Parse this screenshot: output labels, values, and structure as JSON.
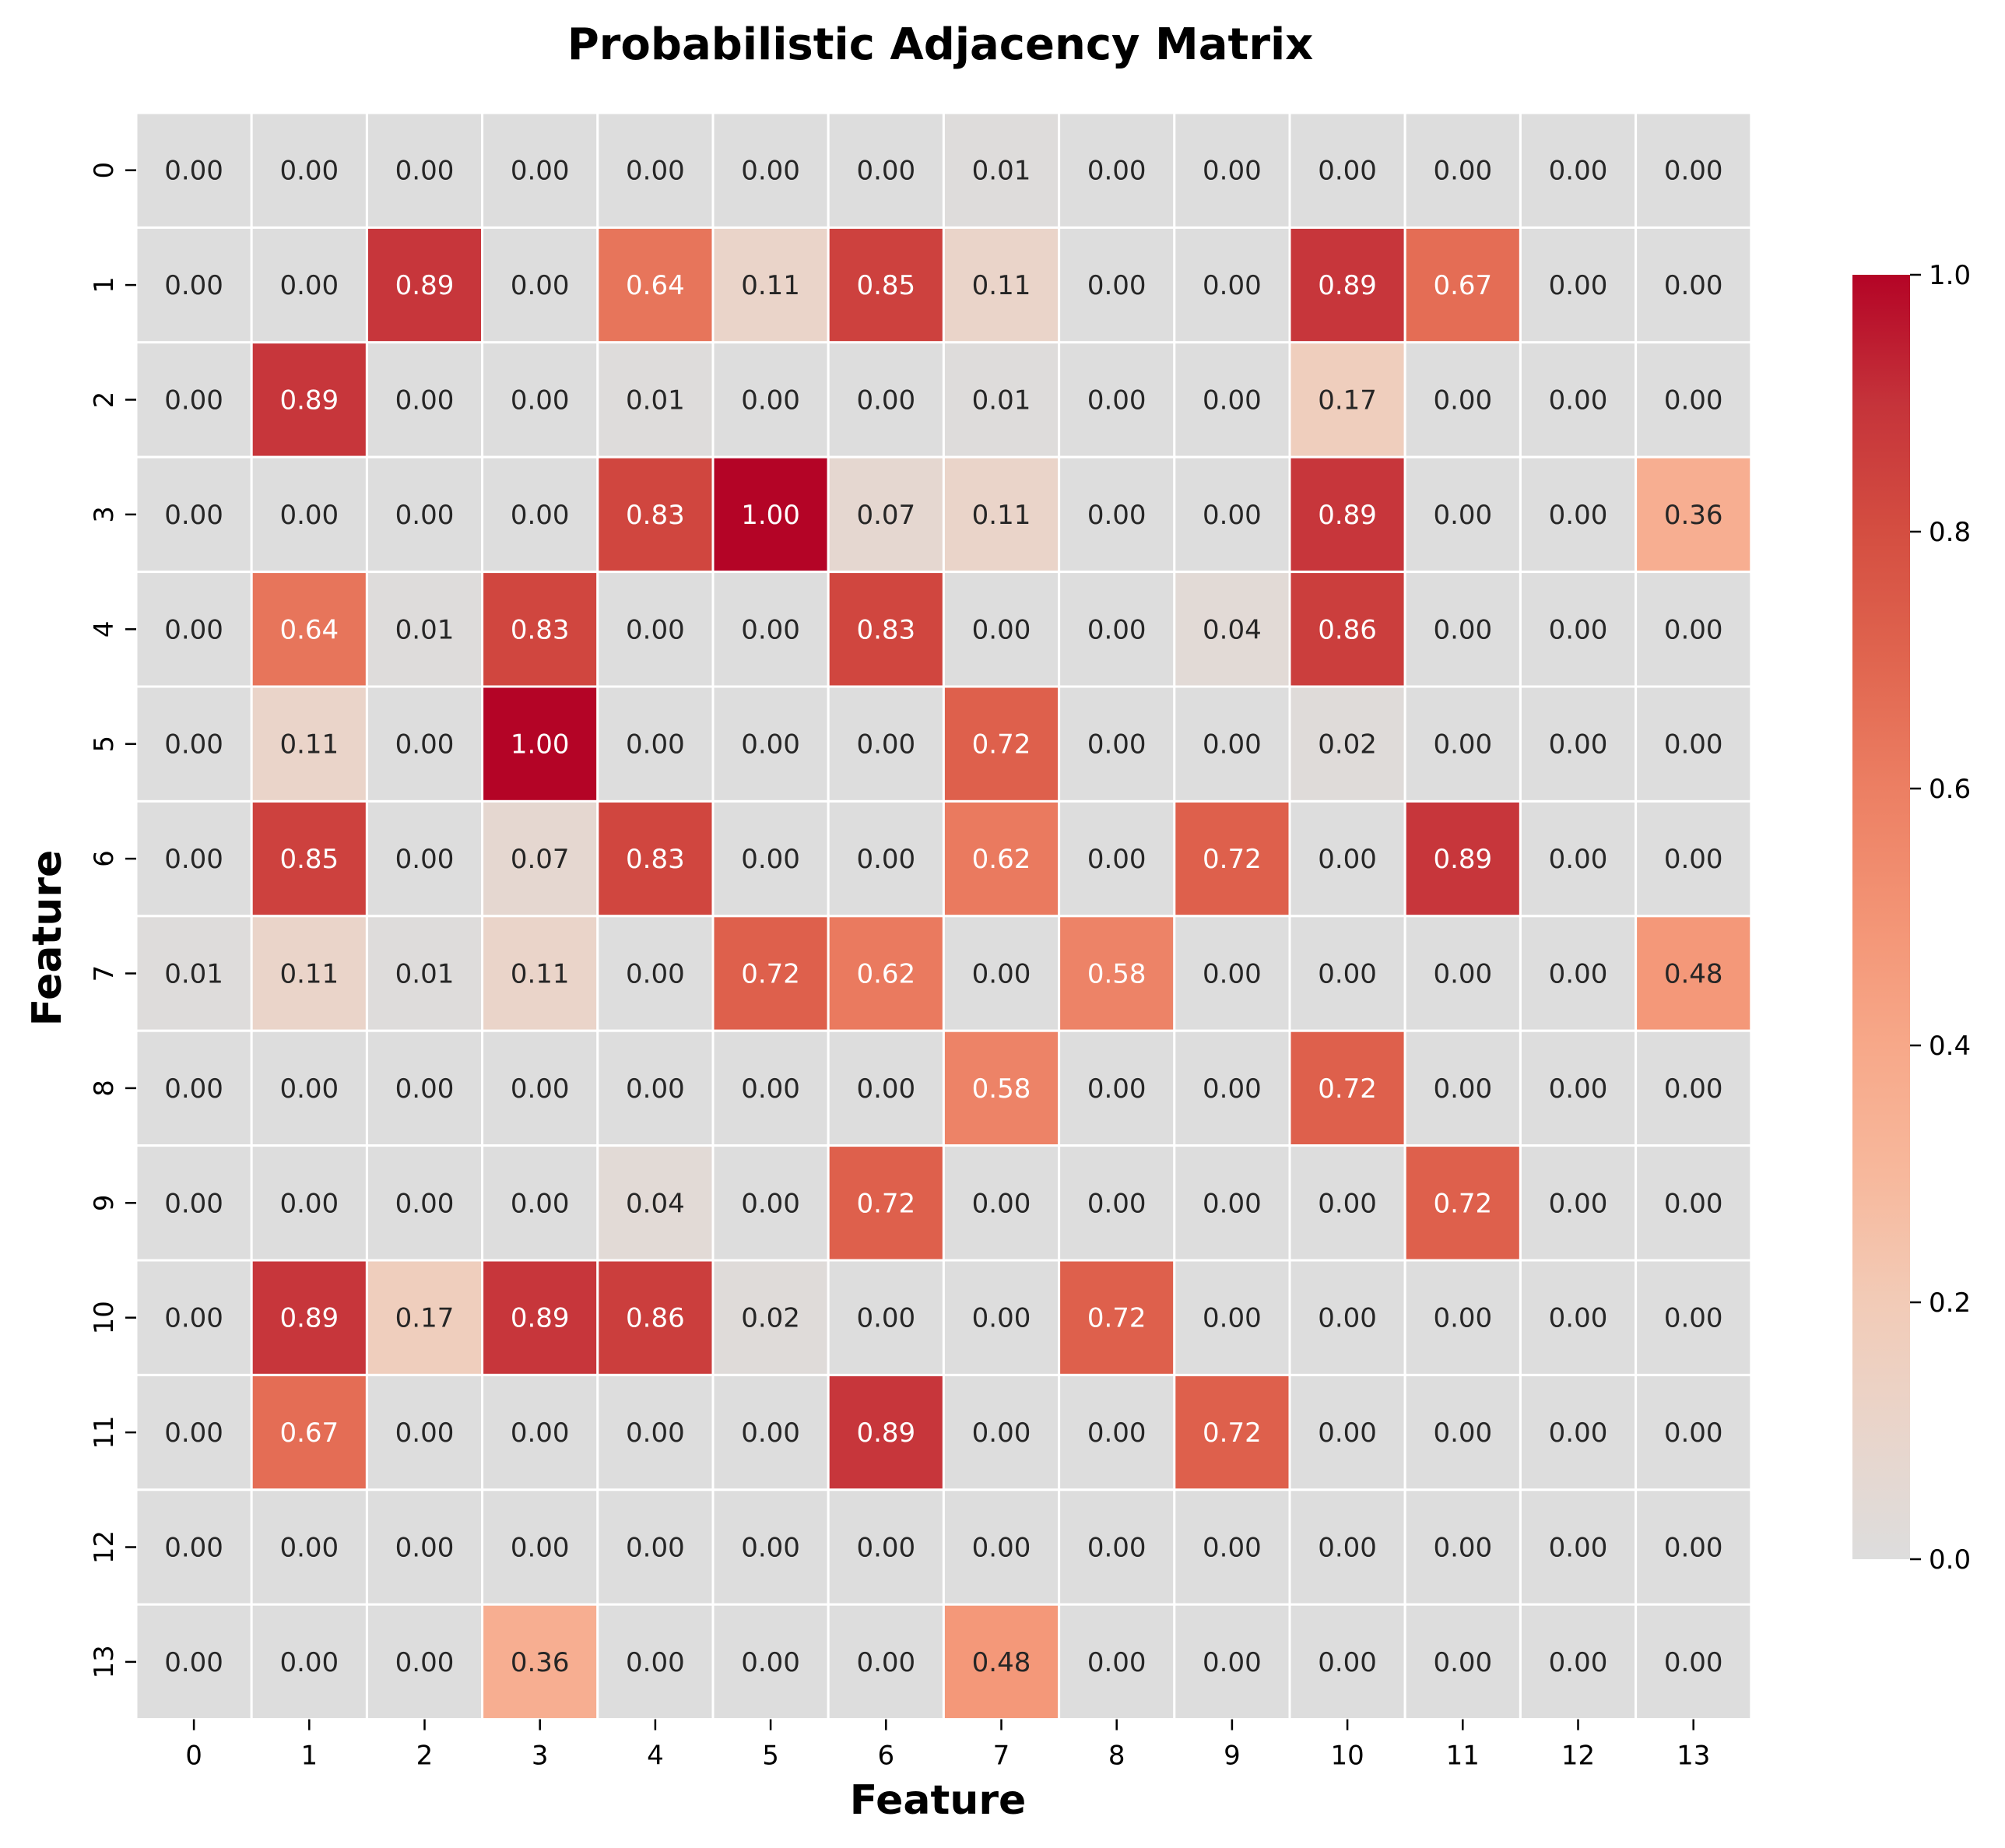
{
  "chart_data": {
    "type": "heatmap",
    "title": "Probabilistic Adjacency Matrix",
    "xlabel": "Feature",
    "ylabel": "Feature",
    "x_categories": [
      "0",
      "1",
      "2",
      "3",
      "4",
      "5",
      "6",
      "7",
      "8",
      "9",
      "10",
      "11",
      "12",
      "13"
    ],
    "y_categories": [
      "0",
      "1",
      "2",
      "3",
      "4",
      "5",
      "6",
      "7",
      "8",
      "9",
      "10",
      "11",
      "12",
      "13"
    ],
    "values": [
      [
        0.0,
        0.0,
        0.0,
        0.0,
        0.0,
        0.0,
        0.0,
        0.01,
        0.0,
        0.0,
        0.0,
        0.0,
        0.0,
        0.0
      ],
      [
        0.0,
        0.0,
        0.89,
        0.0,
        0.64,
        0.11,
        0.85,
        0.11,
        0.0,
        0.0,
        0.89,
        0.67,
        0.0,
        0.0
      ],
      [
        0.0,
        0.89,
        0.0,
        0.0,
        0.01,
        0.0,
        0.0,
        0.01,
        0.0,
        0.0,
        0.17,
        0.0,
        0.0,
        0.0
      ],
      [
        0.0,
        0.0,
        0.0,
        0.0,
        0.83,
        1.0,
        0.07,
        0.11,
        0.0,
        0.0,
        0.89,
        0.0,
        0.0,
        0.36
      ],
      [
        0.0,
        0.64,
        0.01,
        0.83,
        0.0,
        0.0,
        0.83,
        0.0,
        0.0,
        0.04,
        0.86,
        0.0,
        0.0,
        0.0
      ],
      [
        0.0,
        0.11,
        0.0,
        1.0,
        0.0,
        0.0,
        0.0,
        0.72,
        0.0,
        0.0,
        0.02,
        0.0,
        0.0,
        0.0
      ],
      [
        0.0,
        0.85,
        0.0,
        0.07,
        0.83,
        0.0,
        0.0,
        0.62,
        0.0,
        0.72,
        0.0,
        0.89,
        0.0,
        0.0
      ],
      [
        0.01,
        0.11,
        0.01,
        0.11,
        0.0,
        0.72,
        0.62,
        0.0,
        0.58,
        0.0,
        0.0,
        0.0,
        0.0,
        0.48
      ],
      [
        0.0,
        0.0,
        0.0,
        0.0,
        0.0,
        0.0,
        0.0,
        0.58,
        0.0,
        0.0,
        0.72,
        0.0,
        0.0,
        0.0
      ],
      [
        0.0,
        0.0,
        0.0,
        0.0,
        0.04,
        0.0,
        0.72,
        0.0,
        0.0,
        0.0,
        0.0,
        0.72,
        0.0,
        0.0
      ],
      [
        0.0,
        0.89,
        0.17,
        0.89,
        0.86,
        0.02,
        0.0,
        0.0,
        0.72,
        0.0,
        0.0,
        0.0,
        0.0,
        0.0
      ],
      [
        0.0,
        0.67,
        0.0,
        0.0,
        0.0,
        0.0,
        0.89,
        0.0,
        0.0,
        0.72,
        0.0,
        0.0,
        0.0,
        0.0
      ],
      [
        0.0,
        0.0,
        0.0,
        0.0,
        0.0,
        0.0,
        0.0,
        0.0,
        0.0,
        0.0,
        0.0,
        0.0,
        0.0,
        0.0
      ],
      [
        0.0,
        0.0,
        0.0,
        0.36,
        0.0,
        0.0,
        0.0,
        0.48,
        0.0,
        0.0,
        0.0,
        0.0,
        0.0,
        0.0
      ]
    ],
    "value_format": "0.00",
    "vmin": 0.0,
    "vmax": 1.0,
    "colormap": "coolwarm (upper half)",
    "colorbar": {
      "ticks": [
        0.0,
        0.2,
        0.4,
        0.6,
        0.8,
        1.0
      ],
      "tick_labels": [
        "0.0",
        "0.2",
        "0.4",
        "0.6",
        "0.8",
        "1.0"
      ],
      "placement": "right"
    },
    "colors": {
      "low": "#dddddd",
      "high": "#b40426",
      "cell_border": "#ffffff",
      "text_dark": "#262626",
      "text_light": "#ffffff"
    }
  }
}
